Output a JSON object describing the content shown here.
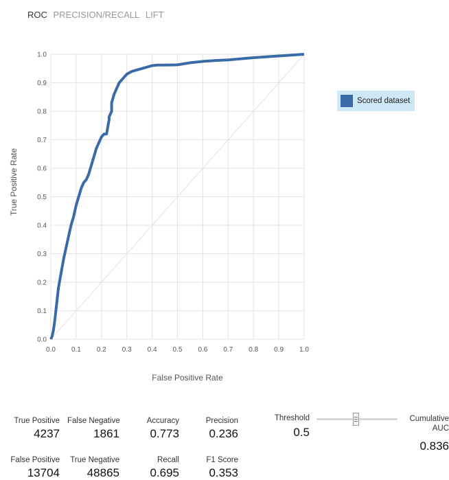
{
  "tabs": [
    {
      "label": "ROC",
      "active": true
    },
    {
      "label": "PRECISION/RECALL",
      "active": false
    },
    {
      "label": "LIFT",
      "active": false
    }
  ],
  "chart_data": {
    "type": "line",
    "title": "",
    "xlabel": "False Positive Rate",
    "ylabel": "True Positive Rate",
    "xlim": [
      0,
      1
    ],
    "ylim": [
      0,
      1
    ],
    "xticks": [
      "0.0",
      "0.1",
      "0.2",
      "0.3",
      "0.4",
      "0.5",
      "0.6",
      "0.7",
      "0.8",
      "0.9",
      "1.0"
    ],
    "yticks": [
      "0.0",
      "0.1",
      "0.2",
      "0.3",
      "0.4",
      "0.5",
      "0.6",
      "0.7",
      "0.8",
      "0.9",
      "1.0"
    ],
    "grid": true,
    "legend_position": "right",
    "series": [
      {
        "name": "Scored dataset",
        "color": "#3a6aa8",
        "x": [
          0.0,
          0.005,
          0.01,
          0.015,
          0.02,
          0.03,
          0.04,
          0.05,
          0.06,
          0.07,
          0.08,
          0.09,
          0.1,
          0.11,
          0.12,
          0.13,
          0.14,
          0.15,
          0.16,
          0.17,
          0.18,
          0.19,
          0.2,
          0.21,
          0.22,
          0.23,
          0.23,
          0.24,
          0.24,
          0.25,
          0.26,
          0.27,
          0.28,
          0.29,
          0.3,
          0.32,
          0.34,
          0.36,
          0.38,
          0.4,
          0.42,
          0.45,
          0.5,
          0.55,
          0.6,
          0.65,
          0.7,
          0.75,
          0.8,
          0.85,
          0.9,
          0.95,
          1.0
        ],
        "y": [
          0.0,
          0.01,
          0.03,
          0.06,
          0.1,
          0.18,
          0.23,
          0.28,
          0.32,
          0.36,
          0.4,
          0.43,
          0.47,
          0.5,
          0.53,
          0.55,
          0.56,
          0.58,
          0.61,
          0.64,
          0.67,
          0.69,
          0.71,
          0.72,
          0.72,
          0.77,
          0.78,
          0.8,
          0.83,
          0.86,
          0.88,
          0.9,
          0.91,
          0.92,
          0.93,
          0.94,
          0.945,
          0.95,
          0.955,
          0.96,
          0.962,
          0.962,
          0.963,
          0.97,
          0.975,
          0.978,
          0.98,
          0.984,
          0.988,
          0.991,
          0.994,
          0.997,
          1.0
        ]
      }
    ],
    "reference_line": {
      "x": [
        0,
        1
      ],
      "y": [
        0,
        1
      ],
      "color": "#e6e6e6"
    }
  },
  "metrics": [
    {
      "label": "True Positive",
      "value": "4237"
    },
    {
      "label": "False Negative",
      "value": "1861"
    },
    {
      "label": "Accuracy",
      "value": "0.773"
    },
    {
      "label": "Precision",
      "value": "0.236"
    },
    {
      "label": "False Positive",
      "value": "13704"
    },
    {
      "label": "True Negative",
      "value": "48865"
    },
    {
      "label": "Recall",
      "value": "0.695"
    },
    {
      "label": "F1 Score",
      "value": "0.353"
    }
  ],
  "threshold": {
    "label": "Threshold",
    "value": "0.5",
    "slider_fraction": 0.5
  },
  "cumulative_auc": {
    "label": "Cumulative AUC",
    "value": "0.836"
  }
}
